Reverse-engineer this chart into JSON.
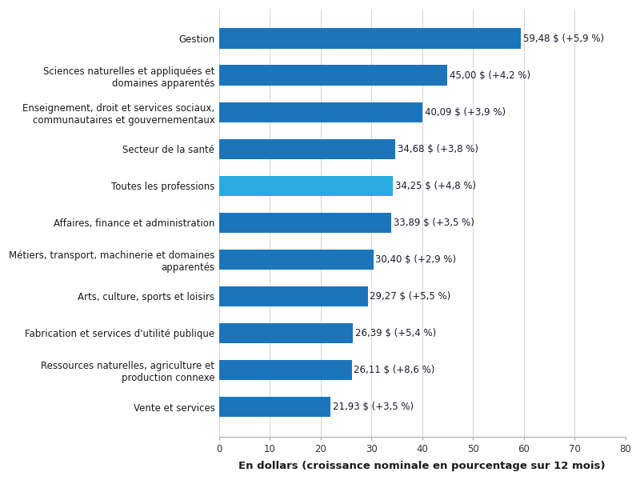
{
  "categories": [
    "Gestion",
    "Sciences naturelles et appliquées et\ndomaines apparentés",
    "Enseignement, droit et services sociaux,\ncommunautaires et gouvernementaux",
    "Secteur de la santé",
    "Toutes les professions",
    "Affaires, finance et administration",
    "Métiers, transport, machinerie et domaines\napparentés",
    "Arts, culture, sports et loisirs",
    "Fabrication et services d'utilité publique",
    "Ressources naturelles, agriculture et\nproduction connexe",
    "Vente et services"
  ],
  "values": [
    59.48,
    45.0,
    40.09,
    34.68,
    34.25,
    33.89,
    30.4,
    29.27,
    26.39,
    26.11,
    21.93
  ],
  "labels": [
    "59,48 $ (+5,9 %)",
    "45,00 $ (+4,2 %)",
    "40,09 $ (+3,9 %)",
    "34,68 $ (+3,8 %)",
    "34,25 $ (+4,8 %)",
    "33,89 $ (+3,5 %)",
    "30,40 $ (+2,9 %)",
    "29,27 $ (+5,5 %)",
    "26,39 $ (+5,4 %)",
    "26,11 $ (+8,6 %)",
    "21,93 $ (+3,5 %)"
  ],
  "bar_colors": [
    "#1B75BC",
    "#1B75BC",
    "#1B75BC",
    "#1B75BC",
    "#29ABE2",
    "#1B75BC",
    "#1B75BC",
    "#1B75BC",
    "#1B75BC",
    "#1B75BC",
    "#1B75BC"
  ],
  "xlabel": "En dollars (croissance nominale en pourcentage sur 12 mois)",
  "xlim": [
    0,
    80
  ],
  "xticks": [
    0,
    10,
    20,
    30,
    40,
    50,
    60,
    70,
    80
  ],
  "label_color": "#1A1A2E",
  "label_fontsize": 8.5,
  "category_fontsize": 8.5,
  "xlabel_fontsize": 9.5,
  "background_color": "#FFFFFF",
  "bar_height": 0.55,
  "grid_color": "#CCCCCC",
  "tick_color": "#333333"
}
